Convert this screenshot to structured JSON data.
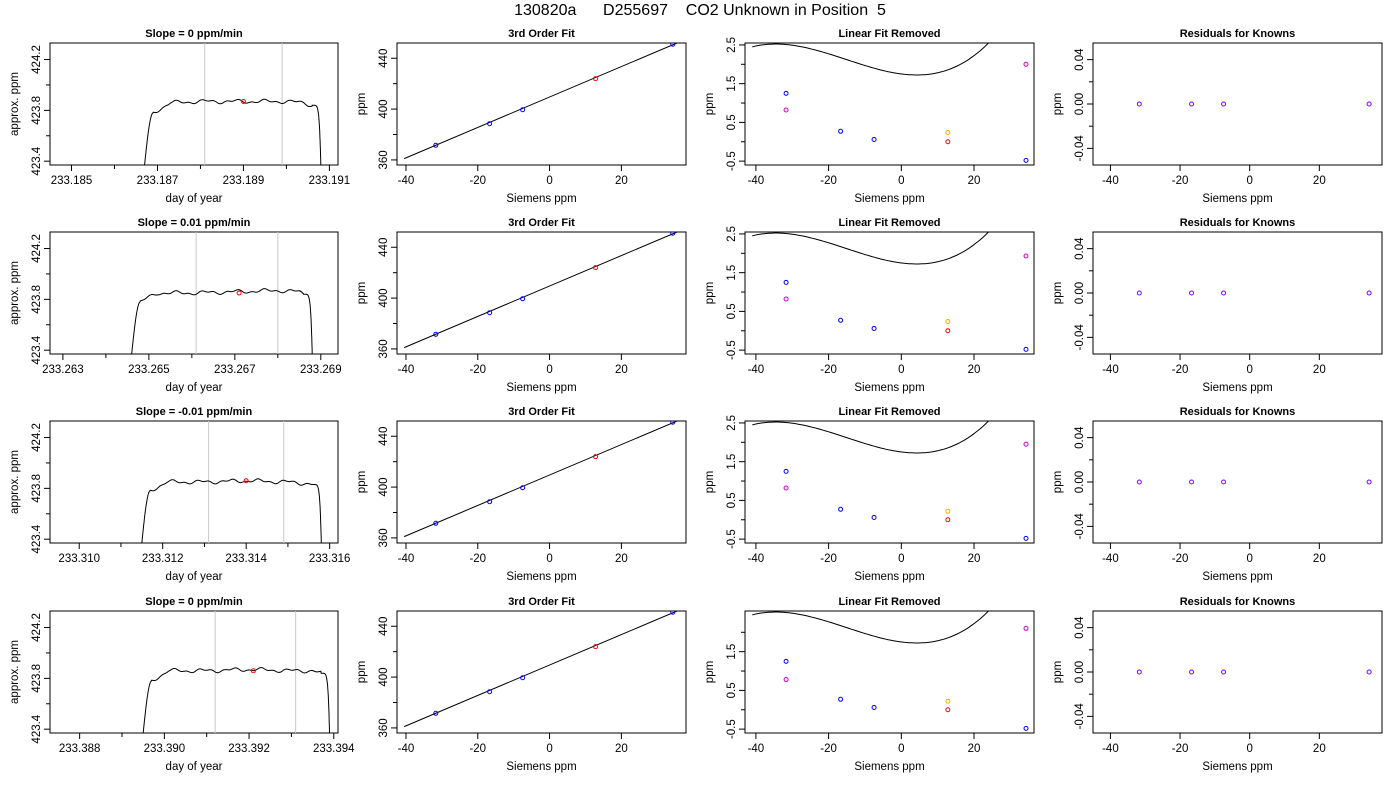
{
  "page": {
    "title": "130820a      D255697    CO2 Unknown in Position  5"
  },
  "colors": {
    "frame": "#000000",
    "vline": "#c8c8c8",
    "blue": "#0000ff",
    "red": "#ff0000",
    "magenta": "#cc00cc",
    "orange": "#ffa500",
    "purple": "#7f00ff"
  },
  "chart_data": [
    {
      "type": "line",
      "title": "Slope =  0  ppm/min",
      "xlabel": "day of year",
      "ylabel": "approx. ppm",
      "xlim": [
        233.1845,
        233.1912
      ],
      "ylim": [
        423.37,
        424.33
      ],
      "xticks": [
        233.185,
        233.187,
        233.189,
        233.191
      ],
      "xminor": [
        233.186,
        233.188,
        233.19
      ],
      "yticks": [
        423.4,
        423.8,
        424.2
      ],
      "yminor": [
        423.6,
        424.0
      ],
      "vlines": [
        233.1881,
        233.1899
      ],
      "series": [
        {
          "x": [
            233.1867,
            233.1869,
            233.1873,
            233.188,
            233.189,
            233.19,
            233.1904,
            233.1906,
            233.1908
          ],
          "y": [
            423.37,
            423.78,
            423.86,
            423.87,
            423.87,
            423.87,
            423.86,
            423.84,
            423.37
          ]
        }
      ],
      "marker": {
        "x": 233.189,
        "y": 423.87
      }
    },
    {
      "type": "scatter",
      "title": "3rd Order Fit",
      "xlabel": "Siemens ppm",
      "ylabel": "ppm",
      "xlim": [
        -42.5,
        38
      ],
      "ylim": [
        356,
        452
      ],
      "xticks": [
        -40,
        -20,
        0,
        20
      ],
      "yticks": [
        360,
        400,
        440
      ],
      "yminor": [
        380,
        420
      ],
      "fit_line": {
        "x": [
          -40.5,
          35.5
        ],
        "y": [
          361,
          452
        ]
      },
      "points": [
        {
          "x": -31.7,
          "y": 371.5,
          "c": "blue"
        },
        {
          "x": -16.7,
          "y": 388.5,
          "c": "blue"
        },
        {
          "x": -7.5,
          "y": 399.5,
          "c": "blue"
        },
        {
          "x": 12.8,
          "y": 424.0,
          "c": "red"
        },
        {
          "x": 34.3,
          "y": 451.0,
          "c": "blue"
        }
      ]
    },
    {
      "type": "scatter",
      "title": "Linear Fit Removed",
      "xlabel": "Siemens ppm",
      "ylabel": "ppm",
      "xlim": [
        -43,
        36.5
      ],
      "ylim": [
        -0.6,
        2.55
      ],
      "xticks": [
        -40,
        -20,
        0,
        20
      ],
      "yticks": [
        -0.5,
        0.5,
        1.5,
        2.5
      ],
      "yminor": [
        0,
        1,
        2
      ],
      "curve": {
        "x0": -41,
        "y0": 2.45,
        "x1": 35,
        "coef": [
          1.0042,
          -0.0121,
          0.00124,
          2.73e-05
        ]
      },
      "points": [
        {
          "x": -31.7,
          "y": 1.25,
          "c": "blue"
        },
        {
          "x": -31.7,
          "y": 0.82,
          "c": "magenta"
        },
        {
          "x": -16.7,
          "y": 0.27,
          "c": "blue"
        },
        {
          "x": -7.5,
          "y": 0.06,
          "c": "blue"
        },
        {
          "x": 12.8,
          "y": 0.0,
          "c": "red"
        },
        {
          "x": 12.8,
          "y": 0.24,
          "c": "orange"
        },
        {
          "x": 34.3,
          "y": 2.0,
          "c": "magenta"
        },
        {
          "x": 34.3,
          "y": -0.48,
          "c": "blue"
        }
      ]
    },
    {
      "type": "scatter",
      "title": "Residuals for Knowns",
      "xlabel": "Siemens ppm",
      "ylabel": "ppm",
      "xlim": [
        -45,
        38
      ],
      "ylim": [
        -0.055,
        0.055
      ],
      "xticks": [
        -40,
        -20,
        0,
        20
      ],
      "yticks": [
        -0.04,
        0.0,
        0.04
      ],
      "ytick_labels": [
        "-0.04",
        "0.00",
        "0.04"
      ],
      "yminor": [
        -0.02,
        0.02
      ],
      "points": [
        {
          "x": -31.7,
          "y": 0,
          "c": "purple"
        },
        {
          "x": -16.7,
          "y": 0,
          "c": "purple"
        },
        {
          "x": -7.5,
          "y": 0,
          "c": "purple"
        },
        {
          "x": 34.3,
          "y": 0,
          "c": "purple"
        }
      ]
    },
    {
      "type": "line",
      "title": "Slope =  0.01  ppm/min",
      "xlabel": "day of year",
      "ylabel": "approx. ppm",
      "xlim": [
        233.2627,
        233.2694
      ],
      "ylim": [
        423.37,
        424.33
      ],
      "xticks": [
        233.263,
        233.265,
        233.267,
        233.269
      ],
      "xminor": [
        233.264,
        233.266,
        233.268
      ],
      "yticks": [
        423.4,
        423.8,
        424.2
      ],
      "yminor": [
        423.6,
        424.0
      ],
      "vlines": [
        233.2661,
        233.268
      ],
      "series": [
        {
          "x": [
            233.2646,
            233.2648,
            233.2652,
            233.266,
            233.267,
            233.268,
            233.2685,
            233.2686,
            233.2688
          ],
          "y": [
            423.37,
            423.78,
            423.85,
            423.85,
            423.86,
            423.87,
            423.86,
            423.84,
            423.37
          ]
        }
      ],
      "marker": {
        "x": 233.2671,
        "y": 423.85
      }
    },
    {
      "type": "scatter",
      "title": "3rd Order Fit",
      "xlabel": "Siemens ppm",
      "ylabel": "ppm",
      "xlim": [
        -42.5,
        38
      ],
      "ylim": [
        356,
        452
      ],
      "xticks": [
        -40,
        -20,
        0,
        20
      ],
      "yticks": [
        360,
        400,
        440
      ],
      "yminor": [
        380,
        420
      ],
      "fit_line": {
        "x": [
          -40.5,
          35.5
        ],
        "y": [
          361,
          452
        ]
      },
      "points": [
        {
          "x": -31.7,
          "y": 371.5,
          "c": "blue"
        },
        {
          "x": -16.7,
          "y": 388.5,
          "c": "blue"
        },
        {
          "x": -7.5,
          "y": 399.5,
          "c": "blue"
        },
        {
          "x": 12.8,
          "y": 424.0,
          "c": "red"
        },
        {
          "x": 34.3,
          "y": 451.0,
          "c": "blue"
        }
      ]
    },
    {
      "type": "scatter",
      "title": "Linear Fit Removed",
      "xlabel": "Siemens ppm",
      "ylabel": "ppm",
      "xlim": [
        -43,
        36.5
      ],
      "ylim": [
        -0.6,
        2.55
      ],
      "xticks": [
        -40,
        -20,
        0,
        20
      ],
      "yticks": [
        -0.5,
        0.5,
        1.5,
        2.5
      ],
      "yminor": [
        0,
        1,
        2
      ],
      "curve": {
        "x0": -41,
        "y0": 2.45,
        "x1": 35,
        "coef": [
          1.0042,
          -0.0121,
          0.00124,
          2.73e-05
        ]
      },
      "points": [
        {
          "x": -31.7,
          "y": 1.25,
          "c": "blue"
        },
        {
          "x": -31.7,
          "y": 0.82,
          "c": "magenta"
        },
        {
          "x": -16.7,
          "y": 0.27,
          "c": "blue"
        },
        {
          "x": -7.5,
          "y": 0.06,
          "c": "blue"
        },
        {
          "x": 12.8,
          "y": 0.0,
          "c": "red"
        },
        {
          "x": 12.8,
          "y": 0.24,
          "c": "orange"
        },
        {
          "x": 34.3,
          "y": 1.93,
          "c": "magenta"
        },
        {
          "x": 34.3,
          "y": -0.48,
          "c": "blue"
        }
      ]
    },
    {
      "type": "scatter",
      "title": "Residuals for Knowns",
      "xlabel": "Siemens ppm",
      "ylabel": "ppm",
      "xlim": [
        -45,
        38
      ],
      "ylim": [
        -0.055,
        0.055
      ],
      "xticks": [
        -40,
        -20,
        0,
        20
      ],
      "yticks": [
        -0.04,
        0.0,
        0.04
      ],
      "ytick_labels": [
        "-0.04",
        "0.00",
        "0.04"
      ],
      "yminor": [
        -0.02,
        0.02
      ],
      "points": [
        {
          "x": -31.7,
          "y": 0,
          "c": "purple"
        },
        {
          "x": -16.7,
          "y": 0,
          "c": "purple"
        },
        {
          "x": -7.5,
          "y": 0,
          "c": "purple"
        },
        {
          "x": 34.3,
          "y": 0,
          "c": "purple"
        }
      ]
    },
    {
      "type": "line",
      "title": "Slope =  -0.01  ppm/min",
      "xlabel": "day of year",
      "ylabel": "approx. ppm",
      "xlim": [
        233.3093,
        233.3162
      ],
      "ylim": [
        423.37,
        424.33
      ],
      "xticks": [
        233.31,
        233.312,
        233.314,
        233.316
      ],
      "xminor": [
        233.311,
        233.313,
        233.315
      ],
      "yticks": [
        423.4,
        423.8,
        424.2
      ],
      "yminor": [
        423.6,
        424.0
      ],
      "vlines": [
        233.3131,
        233.3149
      ],
      "series": [
        {
          "x": [
            233.3115,
            233.3117,
            233.3121,
            233.313,
            233.314,
            233.315,
            233.3154,
            233.3156,
            233.3158
          ],
          "y": [
            423.37,
            423.78,
            423.85,
            423.85,
            423.86,
            423.85,
            423.84,
            423.83,
            423.37
          ]
        }
      ],
      "marker": {
        "x": 233.314,
        "y": 423.86
      }
    },
    {
      "type": "scatter",
      "title": "3rd Order Fit",
      "xlabel": "Siemens ppm",
      "ylabel": "ppm",
      "xlim": [
        -42.5,
        38
      ],
      "ylim": [
        356,
        452
      ],
      "xticks": [
        -40,
        -20,
        0,
        20
      ],
      "yticks": [
        360,
        400,
        440
      ],
      "yminor": [
        380,
        420
      ],
      "fit_line": {
        "x": [
          -40.5,
          35.5
        ],
        "y": [
          361,
          452
        ]
      },
      "points": [
        {
          "x": -31.7,
          "y": 371.5,
          "c": "blue"
        },
        {
          "x": -16.7,
          "y": 388.5,
          "c": "blue"
        },
        {
          "x": -7.5,
          "y": 399.5,
          "c": "blue"
        },
        {
          "x": 12.8,
          "y": 424.0,
          "c": "red"
        },
        {
          "x": 34.3,
          "y": 451.0,
          "c": "blue"
        }
      ]
    },
    {
      "type": "scatter",
      "title": "Linear Fit Removed",
      "xlabel": "Siemens ppm",
      "ylabel": "ppm",
      "xlim": [
        -43,
        36.5
      ],
      "ylim": [
        -0.6,
        2.55
      ],
      "xticks": [
        -40,
        -20,
        0,
        20
      ],
      "yticks": [
        -0.5,
        0.5,
        1.5,
        2.5
      ],
      "yminor": [
        0,
        1,
        2
      ],
      "curve": {
        "x0": -41,
        "y0": 2.45,
        "x1": 35,
        "coef": [
          1.0042,
          -0.0121,
          0.00124,
          2.73e-05
        ]
      },
      "points": [
        {
          "x": -31.7,
          "y": 1.25,
          "c": "blue"
        },
        {
          "x": -31.7,
          "y": 0.82,
          "c": "magenta"
        },
        {
          "x": -16.7,
          "y": 0.27,
          "c": "blue"
        },
        {
          "x": -7.5,
          "y": 0.06,
          "c": "blue"
        },
        {
          "x": 12.8,
          "y": 0.0,
          "c": "red"
        },
        {
          "x": 12.8,
          "y": 0.22,
          "c": "orange"
        },
        {
          "x": 34.3,
          "y": 1.95,
          "c": "magenta"
        },
        {
          "x": 34.3,
          "y": -0.48,
          "c": "blue"
        }
      ]
    },
    {
      "type": "scatter",
      "title": "Residuals for Knowns",
      "xlabel": "Siemens ppm",
      "ylabel": "ppm",
      "xlim": [
        -45,
        38
      ],
      "ylim": [
        -0.055,
        0.055
      ],
      "xticks": [
        -40,
        -20,
        0,
        20
      ],
      "yticks": [
        -0.04,
        0.0,
        0.04
      ],
      "ytick_labels": [
        "-0.04",
        "0.00",
        "0.04"
      ],
      "yminor": [
        -0.02,
        0.02
      ],
      "points": [
        {
          "x": -31.7,
          "y": 0,
          "c": "purple"
        },
        {
          "x": -16.7,
          "y": 0,
          "c": "purple"
        },
        {
          "x": -7.5,
          "y": 0,
          "c": "purple"
        },
        {
          "x": 34.3,
          "y": 0,
          "c": "purple"
        }
      ]
    },
    {
      "type": "line",
      "title": "Slope =  0  ppm/min",
      "xlabel": "day of year",
      "ylabel": "approx. ppm",
      "xlim": [
        233.3873,
        233.3941
      ],
      "ylim": [
        423.37,
        424.33
      ],
      "xticks": [
        233.388,
        233.39,
        233.392,
        233.394
      ],
      "xminor": [
        233.389,
        233.391,
        233.393
      ],
      "yticks": [
        423.4,
        423.8,
        424.2
      ],
      "yminor": [
        423.6,
        424.0
      ],
      "vlines": [
        233.3912,
        233.3931
      ],
      "series": [
        {
          "x": [
            233.3895,
            233.3897,
            233.3901,
            233.391,
            233.392,
            233.393,
            233.3935,
            233.3937,
            233.3939
          ],
          "y": [
            423.37,
            423.78,
            423.86,
            423.86,
            423.87,
            423.86,
            423.86,
            423.84,
            423.37
          ]
        }
      ],
      "marker": {
        "x": 233.3921,
        "y": 423.86
      }
    },
    {
      "type": "scatter",
      "title": "3rd Order Fit",
      "xlabel": "Siemens ppm",
      "ylabel": "ppm",
      "xlim": [
        -42.5,
        38
      ],
      "ylim": [
        356,
        452
      ],
      "xticks": [
        -40,
        -20,
        0,
        20
      ],
      "yticks": [
        360,
        400,
        440
      ],
      "yminor": [
        380,
        420
      ],
      "fit_line": {
        "x": [
          -40.5,
          35.5
        ],
        "y": [
          361,
          452
        ]
      },
      "points": [
        {
          "x": -31.7,
          "y": 371.5,
          "c": "blue"
        },
        {
          "x": -16.7,
          "y": 388.5,
          "c": "blue"
        },
        {
          "x": -7.5,
          "y": 399.5,
          "c": "blue"
        },
        {
          "x": 12.8,
          "y": 424.0,
          "c": "red"
        },
        {
          "x": 34.3,
          "y": 451.0,
          "c": "blue"
        }
      ]
    },
    {
      "type": "scatter",
      "title": "Linear Fit Removed",
      "xlabel": "Siemens ppm",
      "ylabel": "ppm",
      "xlim": [
        -43,
        36.5
      ],
      "ylim": [
        -0.6,
        2.55
      ],
      "xticks": [
        -40,
        -20,
        0,
        20
      ],
      "yticks": [
        -0.5,
        0.5,
        1.5
      ],
      "yminor": [
        0,
        1,
        2
      ],
      "curve": {
        "x0": -41,
        "y0": 2.45,
        "x1": 35,
        "coef": [
          1.0042,
          -0.0121,
          0.00124,
          2.73e-05
        ]
      },
      "points": [
        {
          "x": -31.7,
          "y": 1.25,
          "c": "blue"
        },
        {
          "x": -31.7,
          "y": 0.78,
          "c": "magenta"
        },
        {
          "x": -16.7,
          "y": 0.27,
          "c": "blue"
        },
        {
          "x": -7.5,
          "y": 0.06,
          "c": "blue"
        },
        {
          "x": 12.8,
          "y": 0.0,
          "c": "red"
        },
        {
          "x": 12.8,
          "y": 0.22,
          "c": "orange"
        },
        {
          "x": 34.3,
          "y": 2.1,
          "c": "magenta"
        },
        {
          "x": 34.3,
          "y": -0.48,
          "c": "blue"
        }
      ]
    },
    {
      "type": "scatter",
      "title": "Residuals for Knowns",
      "xlabel": "Siemens ppm",
      "ylabel": "ppm",
      "xlim": [
        -45,
        38
      ],
      "ylim": [
        -0.055,
        0.055
      ],
      "xticks": [
        -40,
        -20,
        0,
        20
      ],
      "yticks": [
        -0.04,
        0.0,
        0.04
      ],
      "ytick_labels": [
        "-0.04",
        "0.00",
        "0.04"
      ],
      "yminor": [
        -0.02,
        0.02
      ],
      "points": [
        {
          "x": -31.7,
          "y": 0,
          "c": "purple"
        },
        {
          "x": -16.7,
          "y": 0,
          "c": "purple"
        },
        {
          "x": -7.5,
          "y": 0,
          "c": "purple"
        },
        {
          "x": 34.3,
          "y": 0,
          "c": "purple"
        }
      ]
    }
  ]
}
